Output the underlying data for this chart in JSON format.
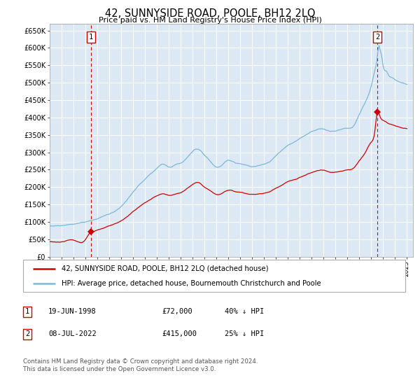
{
  "title": "42, SUNNYSIDE ROAD, POOLE, BH12 2LQ",
  "subtitle": "Price paid vs. HM Land Registry's House Price Index (HPI)",
  "ylabel_ticks": [
    "£0",
    "£50K",
    "£100K",
    "£150K",
    "£200K",
    "£250K",
    "£300K",
    "£350K",
    "£400K",
    "£450K",
    "£500K",
    "£550K",
    "£600K",
    "£650K"
  ],
  "ytick_values": [
    0,
    50000,
    100000,
    150000,
    200000,
    250000,
    300000,
    350000,
    400000,
    450000,
    500000,
    550000,
    600000,
    650000
  ],
  "ylim": [
    0,
    670000
  ],
  "xlim_start": 1995.0,
  "xlim_end": 2025.5,
  "xtick_years": [
    1995,
    1996,
    1997,
    1998,
    1999,
    2000,
    2001,
    2002,
    2003,
    2004,
    2005,
    2006,
    2007,
    2008,
    2009,
    2010,
    2011,
    2012,
    2013,
    2014,
    2015,
    2016,
    2017,
    2018,
    2019,
    2020,
    2021,
    2022,
    2023,
    2024,
    2025
  ],
  "purchase1_x": 1998.47,
  "purchase1_y": 72000,
  "purchase2_x": 2022.52,
  "purchase2_y": 415000,
  "legend_line1": "42, SUNNYSIDE ROAD, POOLE, BH12 2LQ (detached house)",
  "legend_line2": "HPI: Average price, detached house, Bournemouth Christchurch and Poole",
  "table_row1": [
    "1",
    "19-JUN-1998",
    "£72,000",
    "40% ↓ HPI"
  ],
  "table_row2": [
    "2",
    "08-JUL-2022",
    "£415,000",
    "25% ↓ HPI"
  ],
  "footnote": "Contains HM Land Registry data © Crown copyright and database right 2024.\nThis data is licensed under the Open Government Licence v3.0.",
  "hpi_color": "#7ab8d8",
  "price_color": "#cc0000",
  "bg_color": "#dce9f5",
  "grid_color": "#ffffff",
  "dashed_line_color": "#cc0000",
  "box_color": "#cc0000"
}
